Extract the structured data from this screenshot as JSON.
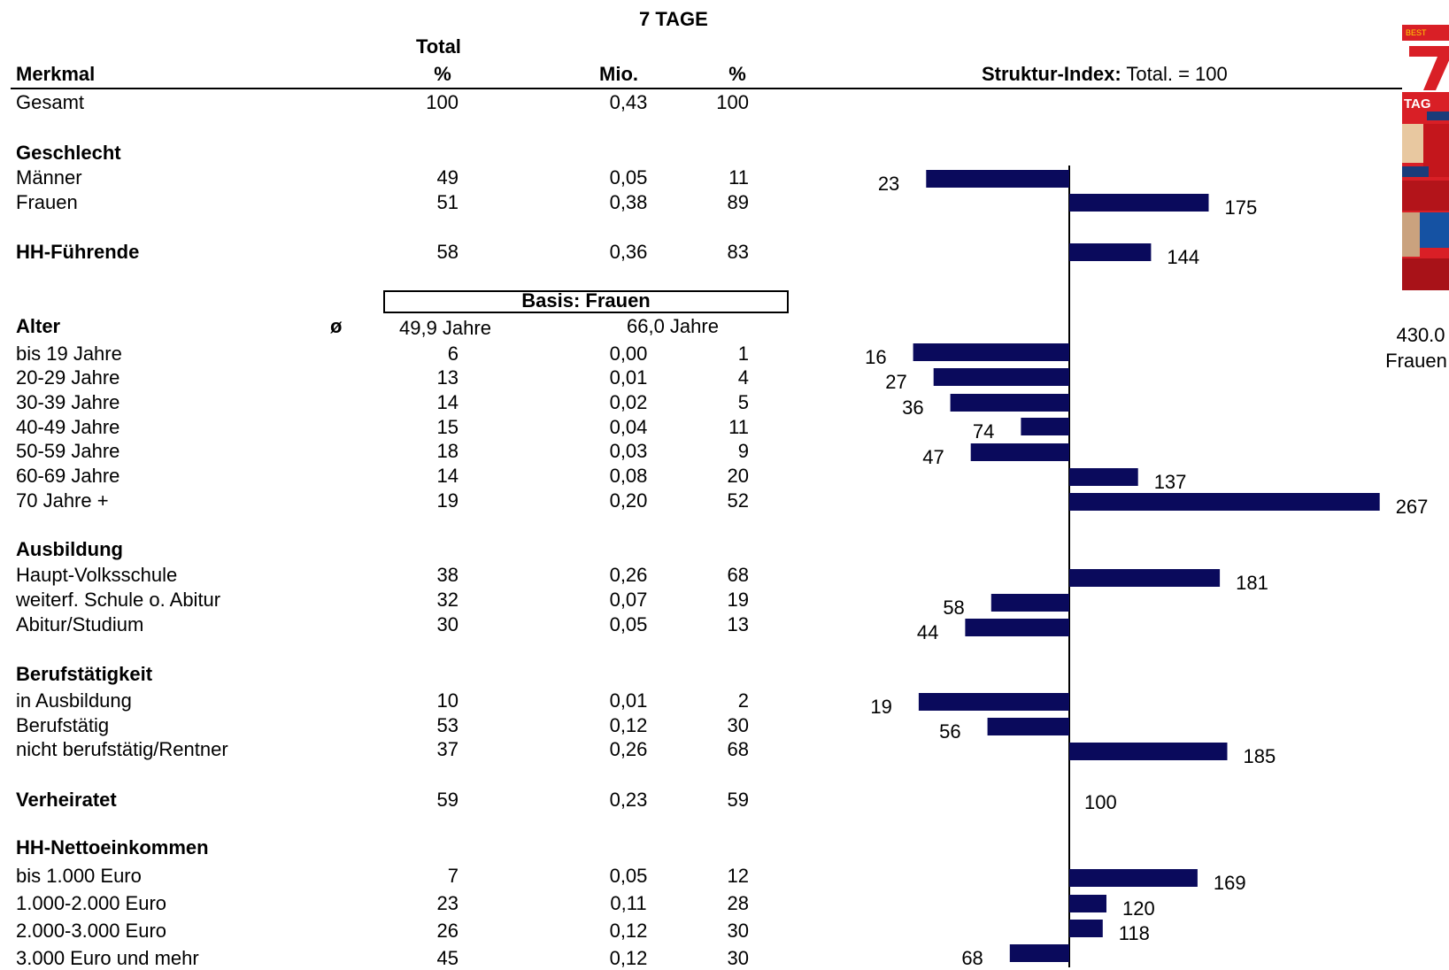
{
  "header": {
    "magazine": "7 TAGE",
    "total_label": "Total",
    "merkmal_label": "Merkmal",
    "col_pct": "%",
    "col_mio": "Mio.",
    "col_pct2": "%",
    "index_label_bold": "Struktur-Index:",
    "index_label_rest": "Total. = 100"
  },
  "basis": {
    "label": "Basis: Frauen"
  },
  "alter_avg": {
    "symbol": "ø",
    "total": "49,9 Jahre",
    "frauen": "66,0 Jahre"
  },
  "side": {
    "reach": "430.0",
    "target": "Frauen"
  },
  "sections": [
    "Geschlecht",
    "Ausbildung",
    "Berufstätigkeit",
    "HH-Nettoeinkommen",
    "Alter"
  ],
  "rows": [
    {
      "label": "Gesamt",
      "bold": false,
      "total_pct": "100",
      "mio": "0,43",
      "pct": "100",
      "index": null
    },
    {
      "label": "Männer",
      "bold": false,
      "total_pct": "49",
      "mio": "0,05",
      "pct": "11",
      "index": 23
    },
    {
      "label": "Frauen",
      "bold": false,
      "total_pct": "51",
      "mio": "0,38",
      "pct": "89",
      "index": 175
    },
    {
      "label": "HH-Führende",
      "bold": true,
      "total_pct": "58",
      "mio": "0,36",
      "pct": "83",
      "index": 144
    },
    {
      "label": "bis 19 Jahre",
      "bold": false,
      "total_pct": "6",
      "mio": "0,00",
      "pct": "1",
      "index": 16
    },
    {
      "label": "20-29 Jahre",
      "bold": false,
      "total_pct": "13",
      "mio": "0,01",
      "pct": "4",
      "index": 27
    },
    {
      "label": "30-39 Jahre",
      "bold": false,
      "total_pct": "14",
      "mio": "0,02",
      "pct": "5",
      "index": 36
    },
    {
      "label": "40-49 Jahre",
      "bold": false,
      "total_pct": "15",
      "mio": "0,04",
      "pct": "11",
      "index": 74
    },
    {
      "label": "50-59 Jahre",
      "bold": false,
      "total_pct": "18",
      "mio": "0,03",
      "pct": "9",
      "index": 47
    },
    {
      "label": "60-69 Jahre",
      "bold": false,
      "total_pct": "14",
      "mio": "0,08",
      "pct": "20",
      "index": 137
    },
    {
      "label": "70 Jahre +",
      "bold": false,
      "total_pct": "19",
      "mio": "0,20",
      "pct": "52",
      "index": 267
    },
    {
      "label": "Haupt-Volksschule",
      "bold": false,
      "total_pct": "38",
      "mio": "0,26",
      "pct": "68",
      "index": 181
    },
    {
      "label": "weiterf. Schule o. Abitur",
      "bold": false,
      "total_pct": "32",
      "mio": "0,07",
      "pct": "19",
      "index": 58
    },
    {
      "label": "Abitur/Studium",
      "bold": false,
      "total_pct": "30",
      "mio": "0,05",
      "pct": "13",
      "index": 44
    },
    {
      "label": "in Ausbildung",
      "bold": false,
      "total_pct": "10",
      "mio": "0,01",
      "pct": "2",
      "index": 19
    },
    {
      "label": "Berufstätig",
      "bold": false,
      "total_pct": "53",
      "mio": "0,12",
      "pct": "30",
      "index": 56
    },
    {
      "label": "nicht berufstätig/Rentner",
      "bold": false,
      "total_pct": "37",
      "mio": "0,26",
      "pct": "68",
      "index": 185
    },
    {
      "label": "Verheiratet",
      "bold": true,
      "total_pct": "59",
      "mio": "0,23",
      "pct": "59",
      "index": 100
    },
    {
      "label": "bis 1.000 Euro",
      "bold": false,
      "total_pct": "7",
      "mio": "0,05",
      "pct": "12",
      "index": 169
    },
    {
      "label": "1.000-2.000 Euro",
      "bold": false,
      "total_pct": "23",
      "mio": "0,11",
      "pct": "28",
      "index": 120
    },
    {
      "label": "2.000-3.000 Euro",
      "bold": false,
      "total_pct": "26",
      "mio": "0,12",
      "pct": "30",
      "index": 118
    },
    {
      "label": "3.000 Euro und mehr",
      "bold": false,
      "total_pct": "45",
      "mio": "0,12",
      "pct": "30",
      "index": 68
    }
  ],
  "chart_data": {
    "type": "bar",
    "orientation": "horizontal",
    "baseline": 100,
    "categories": [
      "Männer",
      "Frauen",
      "HH-Führende",
      "bis 19 Jahre",
      "20-29 Jahre",
      "30-39 Jahre",
      "40-49 Jahre",
      "50-59 Jahre",
      "60-69 Jahre",
      "70 Jahre +",
      "Haupt-Volksschule",
      "weiterf. Schule o. Abitur",
      "Abitur/Studium",
      "in Ausbildung",
      "Berufstätig",
      "nicht berufstätig/Rentner",
      "Verheiratet",
      "bis 1.000 Euro",
      "1.000-2.000 Euro",
      "2.000-3.000 Euro",
      "3.000 Euro und mehr"
    ],
    "values": [
      23,
      175,
      144,
      16,
      27,
      36,
      74,
      47,
      137,
      267,
      181,
      58,
      44,
      19,
      56,
      185,
      100,
      169,
      120,
      118,
      68
    ],
    "title": "Struktur-Index: Total. = 100",
    "bar_color": "#0a0a5c"
  }
}
